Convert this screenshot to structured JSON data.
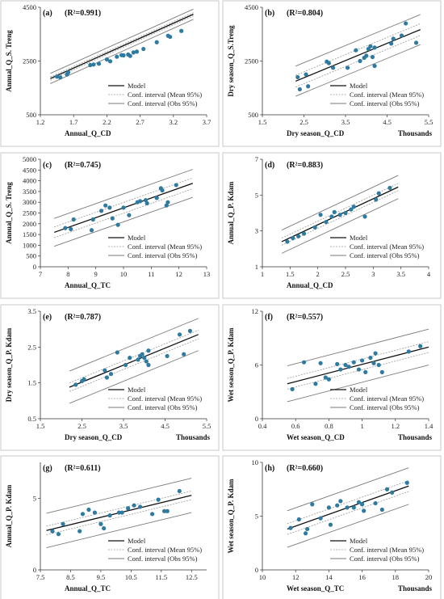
{
  "legend": {
    "model": "Model",
    "mean": "Conf. interval (Mean 95%)",
    "obs": "Conf. interval (Obs 95%)"
  },
  "colors": {
    "points": "#2e7aa0",
    "model": "#111111",
    "mean_ci": "#9a9a9a",
    "obs_ci": "#7a7a7a",
    "frame": "#bbbbbb"
  },
  "chart_data": [
    {
      "type": "scatter",
      "label": "(a)",
      "r2": "(R²=0.991)",
      "xlabel": "Annual_Q_CD",
      "ylabel": "Annual_Q_S. Treng",
      "unit": "",
      "xlim": [
        1.2,
        3.7
      ],
      "ylim": [
        500,
        4500
      ],
      "xticks": [
        1.2,
        1.7,
        2.2,
        2.7,
        3.2,
        3.7
      ],
      "yticks": [
        500,
        2500,
        4500
      ],
      "legend_position": "bottom-right",
      "model": [
        [
          1.35,
          1850
        ],
        [
          3.5,
          4240
        ]
      ],
      "mean_halfwidth": 60,
      "obs_halfwidth": 190,
      "points": [
        [
          1.45,
          1920
        ],
        [
          1.5,
          1890
        ],
        [
          1.6,
          2000
        ],
        [
          1.62,
          2080
        ],
        [
          1.95,
          2350
        ],
        [
          2.0,
          2370
        ],
        [
          2.08,
          2400
        ],
        [
          2.2,
          2560
        ],
        [
          2.25,
          2490
        ],
        [
          2.35,
          2660
        ],
        [
          2.42,
          2720
        ],
        [
          2.45,
          2710
        ],
        [
          2.52,
          2740
        ],
        [
          2.55,
          2690
        ],
        [
          2.6,
          2820
        ],
        [
          2.65,
          2850
        ],
        [
          2.75,
          2950
        ],
        [
          2.95,
          3200
        ],
        [
          3.12,
          3440
        ],
        [
          3.15,
          3400
        ],
        [
          3.32,
          3620
        ]
      ]
    },
    {
      "type": "scatter",
      "label": "(b)",
      "r2": "(R²=0.804)",
      "xlabel": "Dry season_Q_CD",
      "ylabel": "Dry season_Q_S.Treng",
      "unit": "Thousands",
      "xlim": [
        1.5,
        5.5
      ],
      "ylim": [
        500,
        4500
      ],
      "xticks": [
        1.5,
        2.5,
        3.5,
        4.5,
        5.5
      ],
      "yticks": [
        500,
        2500,
        4500
      ],
      "legend_position": "bottom-right",
      "model": [
        [
          2.3,
          1750
        ],
        [
          5.3,
          3670
        ]
      ],
      "mean_halfwidth": 220,
      "obs_halfwidth": 560,
      "points": [
        [
          2.35,
          1900
        ],
        [
          2.4,
          1450
        ],
        [
          2.55,
          2000
        ],
        [
          2.6,
          1560
        ],
        [
          3.05,
          2480
        ],
        [
          3.1,
          2420
        ],
        [
          3.2,
          2250
        ],
        [
          3.55,
          2250
        ],
        [
          3.75,
          2900
        ],
        [
          3.85,
          2500
        ],
        [
          3.95,
          2620
        ],
        [
          4.0,
          2700
        ],
        [
          4.05,
          2950
        ],
        [
          4.1,
          3050
        ],
        [
          4.15,
          2650
        ],
        [
          4.2,
          3000
        ],
        [
          4.2,
          2320
        ],
        [
          4.6,
          3150
        ],
        [
          4.65,
          3330
        ],
        [
          4.85,
          3450
        ],
        [
          4.95,
          3900
        ],
        [
          5.2,
          3180
        ]
      ]
    },
    {
      "type": "scatter",
      "label": "(c)",
      "r2": "(R²=0.745)",
      "xlabel": "Annual_Q_TC",
      "ylabel": "Annual_Q_S. Treng",
      "unit": "",
      "xlim": [
        7,
        13
      ],
      "ylim": [
        0,
        5000
      ],
      "xticks": [
        7,
        8,
        9,
        10,
        11,
        12,
        13
      ],
      "yticks": [
        0,
        500,
        1000,
        1500,
        2000,
        2500,
        3000,
        3500,
        4000,
        4500,
        5000
      ],
      "legend_position": "bottom-right",
      "model": [
        [
          7.5,
          1600
        ],
        [
          12.5,
          3880
        ]
      ],
      "mean_halfwidth": 250,
      "obs_halfwidth": 650,
      "points": [
        [
          7.9,
          1800
        ],
        [
          8.1,
          1750
        ],
        [
          8.2,
          2200
        ],
        [
          8.85,
          1700
        ],
        [
          8.9,
          2200
        ],
        [
          9.2,
          2600
        ],
        [
          9.35,
          2850
        ],
        [
          9.5,
          2750
        ],
        [
          9.6,
          2250
        ],
        [
          9.8,
          1950
        ],
        [
          10.0,
          2750
        ],
        [
          10.2,
          2400
        ],
        [
          10.5,
          3000
        ],
        [
          10.6,
          3050
        ],
        [
          10.8,
          3100
        ],
        [
          10.85,
          2950
        ],
        [
          11.2,
          3200
        ],
        [
          11.35,
          3650
        ],
        [
          11.4,
          3550
        ],
        [
          11.55,
          2850
        ],
        [
          11.6,
          3000
        ],
        [
          11.9,
          3800
        ]
      ]
    },
    {
      "type": "scatter",
      "label": "(d)",
      "r2": "(R²=0.883)",
      "xlabel": "Annual_Q_CD",
      "ylabel": "Annual_Q_P. Kdam",
      "unit": "",
      "xlim": [
        1,
        4
      ],
      "ylim": [
        1,
        7
      ],
      "xticks": [
        1,
        1.5,
        2,
        2.5,
        3,
        3.5,
        4
      ],
      "yticks": [
        1,
        3,
        5,
        7
      ],
      "legend_position": "bottom-right",
      "model": [
        [
          1.35,
          2.4
        ],
        [
          3.45,
          5.45
        ]
      ],
      "mean_halfwidth": 0.2,
      "obs_halfwidth": 0.65,
      "points": [
        [
          1.45,
          2.4
        ],
        [
          1.55,
          2.6
        ],
        [
          1.65,
          2.7
        ],
        [
          1.75,
          2.85
        ],
        [
          1.95,
          3.2
        ],
        [
          2.05,
          3.9
        ],
        [
          2.15,
          3.5
        ],
        [
          2.25,
          3.8
        ],
        [
          2.3,
          4.05
        ],
        [
          2.4,
          3.9
        ],
        [
          2.5,
          4.0
        ],
        [
          2.6,
          4.2
        ],
        [
          2.65,
          4.35
        ],
        [
          2.85,
          3.8
        ],
        [
          3.05,
          4.75
        ],
        [
          3.1,
          5.1
        ],
        [
          3.3,
          5.4
        ]
      ]
    },
    {
      "type": "scatter",
      "label": "(e)",
      "r2": "(R²=0.787)",
      "xlabel": "Dry season_Q_CD",
      "ylabel": "Dry season_Q_P. Kdam",
      "unit": "Thousands",
      "xlim": [
        1.5,
        5.5
      ],
      "ylim": [
        0.5,
        3.5
      ],
      "xticks": [
        1.5,
        2.5,
        3.5,
        4.5,
        5.5
      ],
      "yticks": [
        0.5,
        1.5,
        2.5,
        3.5
      ],
      "legend_position": "bottom-right",
      "model": [
        [
          2.2,
          1.38
        ],
        [
          5.3,
          2.85
        ]
      ],
      "mean_halfwidth": 0.12,
      "obs_halfwidth": 0.45,
      "points": [
        [
          2.35,
          1.45
        ],
        [
          2.5,
          1.55
        ],
        [
          2.55,
          1.6
        ],
        [
          3.05,
          1.85
        ],
        [
          3.1,
          1.65
        ],
        [
          3.2,
          1.75
        ],
        [
          3.35,
          2.35
        ],
        [
          3.55,
          2.0
        ],
        [
          3.65,
          2.2
        ],
        [
          3.85,
          2.15
        ],
        [
          3.9,
          2.25
        ],
        [
          3.95,
          2.3
        ],
        [
          4.0,
          2.2
        ],
        [
          4.05,
          2.1
        ],
        [
          4.1,
          2.4
        ],
        [
          4.1,
          2.0
        ],
        [
          4.55,
          2.25
        ],
        [
          4.85,
          2.85
        ],
        [
          4.95,
          2.3
        ],
        [
          5.1,
          2.95
        ]
      ]
    },
    {
      "type": "scatter",
      "label": "(f)",
      "r2": "(R²=0.557)",
      "xlabel": "Wet season_Q_CD",
      "ylabel": "Wet season_Q_P. Kdam",
      "unit": "Thousands",
      "xlim": [
        0.4,
        1.4
      ],
      "ylim": [
        0,
        12
      ],
      "xticks": [
        0.4,
        0.6,
        0.8,
        1.0,
        1.2,
        1.4
      ],
      "yticks": [
        0,
        6,
        12
      ],
      "legend_position": "bottom-right",
      "model": [
        [
          0.55,
          3.9
        ],
        [
          1.4,
          8.0
        ]
      ],
      "mean_halfwidth": 0.6,
      "obs_halfwidth": 2.0,
      "points": [
        [
          0.58,
          3.3
        ],
        [
          0.65,
          6.3
        ],
        [
          0.72,
          3.9
        ],
        [
          0.78,
          4.6
        ],
        [
          0.8,
          4.4
        ],
        [
          0.85,
          6.1
        ],
        [
          0.87,
          5.5
        ],
        [
          0.9,
          6.0
        ],
        [
          0.92,
          5.8
        ],
        [
          0.95,
          6.3
        ],
        [
          0.98,
          5.5
        ],
        [
          1.0,
          6.5
        ],
        [
          1.02,
          5.2
        ],
        [
          1.05,
          6.8
        ],
        [
          1.07,
          6.2
        ],
        [
          1.08,
          7.3
        ],
        [
          1.1,
          6.0
        ],
        [
          1.12,
          5.2
        ],
        [
          1.28,
          7.5
        ],
        [
          1.35,
          8.1
        ],
        [
          0.75,
          6.2
        ]
      ]
    },
    {
      "type": "scatter",
      "label": "(g)",
      "r2": "(R²=0.611)",
      "xlabel": "Annual_Q_TC",
      "ylabel": "Annual_Q_P. Kdam",
      "unit": "",
      "xlim": [
        7.5,
        13
      ],
      "ylim": [
        0,
        7.5
      ],
      "xticks": [
        7.5,
        8.5,
        9.5,
        10.5,
        11.5,
        12.5
      ],
      "yticks": [
        0,
        5
      ],
      "legend_position": "bottom-right",
      "model": [
        [
          7.7,
          2.75
        ],
        [
          12.5,
          5.2
        ]
      ],
      "mean_halfwidth": 0.3,
      "obs_halfwidth": 1.2,
      "points": [
        [
          7.9,
          2.7
        ],
        [
          8.1,
          2.5
        ],
        [
          8.25,
          3.2
        ],
        [
          8.8,
          2.7
        ],
        [
          8.9,
          3.9
        ],
        [
          9.1,
          4.2
        ],
        [
          9.3,
          4.0
        ],
        [
          9.5,
          3.2
        ],
        [
          9.6,
          2.9
        ],
        [
          9.8,
          3.8
        ],
        [
          10.1,
          4.0
        ],
        [
          10.2,
          4.0
        ],
        [
          10.4,
          4.3
        ],
        [
          10.6,
          4.5
        ],
        [
          10.8,
          4.4
        ],
        [
          11.2,
          3.9
        ],
        [
          11.4,
          4.9
        ],
        [
          11.6,
          4.1
        ],
        [
          11.7,
          4.1
        ],
        [
          12.1,
          5.5
        ]
      ]
    },
    {
      "type": "scatter",
      "label": "(h)",
      "r2": "(R²=0.660)",
      "xlabel": "Wet season_Q_TC",
      "ylabel": "Wet season_Q_P. Kdam",
      "unit": "Thousands",
      "xlim": [
        10,
        20
      ],
      "ylim": [
        0,
        10
      ],
      "xticks": [
        10,
        12,
        14,
        16,
        18,
        20
      ],
      "yticks": [
        0,
        5,
        10
      ],
      "legend_position": "bottom-right",
      "model": [
        [
          11.5,
          3.8
        ],
        [
          18.8,
          7.8
        ]
      ],
      "mean_halfwidth": 0.5,
      "obs_halfwidth": 1.7,
      "points": [
        [
          11.7,
          3.9
        ],
        [
          12.2,
          4.7
        ],
        [
          12.6,
          3.4
        ],
        [
          12.7,
          3.8
        ],
        [
          13.0,
          6.1
        ],
        [
          13.5,
          4.8
        ],
        [
          14.0,
          5.8
        ],
        [
          14.1,
          4.2
        ],
        [
          14.5,
          6.0
        ],
        [
          14.7,
          6.4
        ],
        [
          15.1,
          5.8
        ],
        [
          15.5,
          5.8
        ],
        [
          15.8,
          6.3
        ],
        [
          16.0,
          6.1
        ],
        [
          16.1,
          5.5
        ],
        [
          16.8,
          6.2
        ],
        [
          17.2,
          5.6
        ],
        [
          17.5,
          7.5
        ],
        [
          17.8,
          7.2
        ],
        [
          18.7,
          8.1
        ]
      ]
    }
  ]
}
